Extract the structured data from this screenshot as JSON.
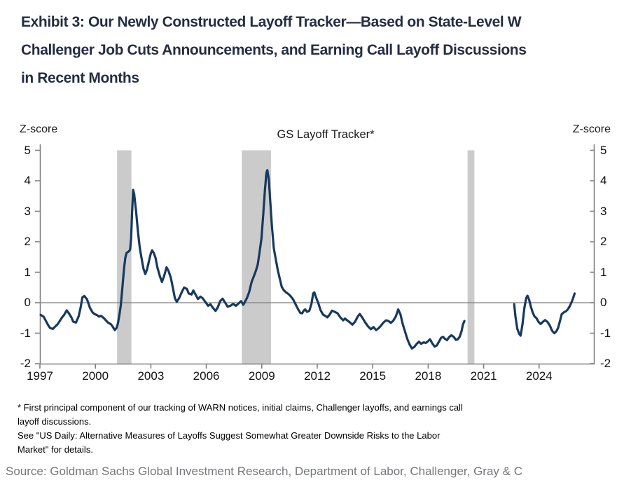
{
  "exhibit": {
    "title_lines": [
      "Exhibit 3: Our Newly Constructed Layoff Tracker—Based on State-Level W",
      "Challenger Job Cuts Announcements, and Earning Call Layoff Discussions",
      "in Recent Months"
    ]
  },
  "chart": {
    "title": "GS Layoff Tracker*",
    "y_axis_label_left": "Z-score",
    "y_axis_label_right": "Z-score"
  },
  "chart_data": {
    "type": "line",
    "title": "GS Layoff Tracker*",
    "xlabel": "",
    "ylabel": "Z-score",
    "ylim": [
      -2,
      5
    ],
    "xlim": [
      1997,
      2027
    ],
    "grid": "zero-line-only",
    "legend_position": "none",
    "y_ticks": [
      5,
      4,
      3,
      2,
      1,
      0,
      -1,
      -2
    ],
    "x_ticks": [
      1997,
      2000,
      2003,
      2006,
      2009,
      2012,
      2015,
      2018,
      2021,
      2024
    ],
    "colors": {
      "line": "#17395f",
      "recession_band": "#cbcbcb",
      "zero_line": "#7f7f7f",
      "axis": "#808080"
    },
    "recession_bands": [
      [
        2001.17,
        2001.95
      ],
      [
        2007.92,
        2009.5
      ],
      [
        2020.13,
        2020.5
      ]
    ],
    "series": [
      {
        "name": "GS Layoff Tracker",
        "segments": [
          [
            [
              1997.04,
              -0.4
            ],
            [
              1997.2,
              -0.46
            ],
            [
              1997.3,
              -0.57
            ],
            [
              1997.45,
              -0.74
            ],
            [
              1997.55,
              -0.83
            ],
            [
              1997.7,
              -0.86
            ],
            [
              1997.8,
              -0.8
            ],
            [
              1997.95,
              -0.71
            ],
            [
              1998.05,
              -0.62
            ],
            [
              1998.2,
              -0.48
            ],
            [
              1998.32,
              -0.39
            ],
            [
              1998.45,
              -0.25
            ],
            [
              1998.55,
              -0.33
            ],
            [
              1998.7,
              -0.48
            ],
            [
              1998.8,
              -0.62
            ],
            [
              1998.95,
              -0.65
            ],
            [
              1999.1,
              -0.44
            ],
            [
              1999.2,
              -0.16
            ],
            [
              1999.3,
              0.18
            ],
            [
              1999.4,
              0.22
            ],
            [
              1999.55,
              0.11
            ],
            [
              1999.7,
              -0.16
            ],
            [
              1999.85,
              -0.32
            ],
            [
              1999.95,
              -0.37
            ],
            [
              2000.1,
              -0.41
            ],
            [
              2000.2,
              -0.46
            ],
            [
              2000.3,
              -0.43
            ],
            [
              2000.45,
              -0.5
            ],
            [
              2000.6,
              -0.6
            ],
            [
              2000.7,
              -0.66
            ],
            [
              2000.85,
              -0.71
            ],
            [
              2000.95,
              -0.8
            ],
            [
              2001.05,
              -0.9
            ],
            [
              2001.15,
              -0.82
            ],
            [
              2001.22,
              -0.68
            ],
            [
              2001.3,
              -0.4
            ],
            [
              2001.37,
              -0.1
            ],
            [
              2001.44,
              0.35
            ],
            [
              2001.5,
              0.78
            ],
            [
              2001.56,
              1.18
            ],
            [
              2001.62,
              1.48
            ],
            [
              2001.68,
              1.63
            ],
            [
              2001.75,
              1.66
            ],
            [
              2001.82,
              1.69
            ],
            [
              2001.88,
              1.74
            ],
            [
              2001.93,
              2.1
            ],
            [
              2001.98,
              2.9
            ],
            [
              2002.04,
              3.7
            ],
            [
              2002.1,
              3.56
            ],
            [
              2002.2,
              3.0
            ],
            [
              2002.3,
              2.35
            ],
            [
              2002.4,
              1.8
            ],
            [
              2002.5,
              1.45
            ],
            [
              2002.6,
              1.12
            ],
            [
              2002.7,
              0.94
            ],
            [
              2002.8,
              1.1
            ],
            [
              2002.9,
              1.38
            ],
            [
              2003.0,
              1.62
            ],
            [
              2003.07,
              1.72
            ],
            [
              2003.16,
              1.63
            ],
            [
              2003.25,
              1.48
            ],
            [
              2003.35,
              1.17
            ],
            [
              2003.48,
              0.88
            ],
            [
              2003.6,
              0.68
            ],
            [
              2003.72,
              0.88
            ],
            [
              2003.85,
              1.16
            ],
            [
              2003.95,
              1.05
            ],
            [
              2004.08,
              0.82
            ],
            [
              2004.2,
              0.46
            ],
            [
              2004.3,
              0.15
            ],
            [
              2004.4,
              0.03
            ],
            [
              2004.53,
              0.15
            ],
            [
              2004.65,
              0.32
            ],
            [
              2004.8,
              0.5
            ],
            [
              2004.95,
              0.45
            ],
            [
              2005.05,
              0.3
            ],
            [
              2005.2,
              0.27
            ],
            [
              2005.3,
              0.4
            ],
            [
              2005.45,
              0.23
            ],
            [
              2005.55,
              0.12
            ],
            [
              2005.68,
              0.2
            ],
            [
              2005.8,
              0.15
            ],
            [
              2005.95,
              0.02
            ],
            [
              2006.1,
              -0.1
            ],
            [
              2006.22,
              -0.05
            ],
            [
              2006.35,
              -0.16
            ],
            [
              2006.5,
              -0.27
            ],
            [
              2006.62,
              -0.15
            ],
            [
              2006.75,
              0.05
            ],
            [
              2006.88,
              0.13
            ],
            [
              2007.0,
              0.02
            ],
            [
              2007.15,
              -0.13
            ],
            [
              2007.3,
              -0.1
            ],
            [
              2007.45,
              -0.04
            ],
            [
              2007.6,
              -0.1
            ],
            [
              2007.75,
              -0.02
            ],
            [
              2007.88,
              0.05
            ],
            [
              2008.0,
              -0.07
            ],
            [
              2008.1,
              0.04
            ],
            [
              2008.2,
              0.16
            ],
            [
              2008.32,
              0.35
            ],
            [
              2008.45,
              0.68
            ],
            [
              2008.58,
              0.88
            ],
            [
              2008.68,
              1.05
            ],
            [
              2008.78,
              1.25
            ],
            [
              2008.88,
              1.65
            ],
            [
              2008.98,
              2.1
            ],
            [
              2009.08,
              2.9
            ],
            [
              2009.17,
              3.7
            ],
            [
              2009.25,
              4.25
            ],
            [
              2009.3,
              4.35
            ],
            [
              2009.38,
              4.05
            ],
            [
              2009.45,
              3.4
            ],
            [
              2009.55,
              2.5
            ],
            [
              2009.65,
              1.78
            ],
            [
              2009.75,
              1.45
            ],
            [
              2009.87,
              1.05
            ],
            [
              2009.97,
              0.8
            ],
            [
              2010.08,
              0.52
            ],
            [
              2010.2,
              0.4
            ],
            [
              2010.33,
              0.33
            ],
            [
              2010.45,
              0.28
            ],
            [
              2010.58,
              0.2
            ],
            [
              2010.7,
              0.1
            ],
            [
              2010.82,
              -0.04
            ],
            [
              2010.95,
              -0.2
            ],
            [
              2011.08,
              -0.33
            ],
            [
              2011.18,
              -0.35
            ],
            [
              2011.28,
              -0.25
            ],
            [
              2011.35,
              -0.22
            ],
            [
              2011.45,
              -0.3
            ],
            [
              2011.57,
              -0.27
            ],
            [
              2011.68,
              -0.05
            ],
            [
              2011.78,
              0.3
            ],
            [
              2011.84,
              0.34
            ],
            [
              2011.93,
              0.18
            ],
            [
              2012.05,
              0.0
            ],
            [
              2012.18,
              -0.25
            ],
            [
              2012.32,
              -0.39
            ],
            [
              2012.45,
              -0.44
            ],
            [
              2012.55,
              -0.48
            ],
            [
              2012.68,
              -0.38
            ],
            [
              2012.8,
              -0.26
            ],
            [
              2012.95,
              -0.3
            ],
            [
              2013.1,
              -0.35
            ],
            [
              2013.25,
              -0.48
            ],
            [
              2013.4,
              -0.58
            ],
            [
              2013.5,
              -0.52
            ],
            [
              2013.62,
              -0.58
            ],
            [
              2013.75,
              -0.64
            ],
            [
              2013.9,
              -0.72
            ],
            [
              2014.05,
              -0.62
            ],
            [
              2014.18,
              -0.46
            ],
            [
              2014.3,
              -0.37
            ],
            [
              2014.45,
              -0.5
            ],
            [
              2014.6,
              -0.65
            ],
            [
              2014.75,
              -0.78
            ],
            [
              2014.9,
              -0.87
            ],
            [
              2015.05,
              -0.8
            ],
            [
              2015.18,
              -0.9
            ],
            [
              2015.32,
              -0.84
            ],
            [
              2015.45,
              -0.75
            ],
            [
              2015.58,
              -0.65
            ],
            [
              2015.72,
              -0.58
            ],
            [
              2015.85,
              -0.6
            ],
            [
              2015.98,
              -0.66
            ],
            [
              2016.1,
              -0.6
            ],
            [
              2016.25,
              -0.45
            ],
            [
              2016.38,
              -0.22
            ],
            [
              2016.5,
              -0.38
            ],
            [
              2016.62,
              -0.7
            ],
            [
              2016.75,
              -0.95
            ],
            [
              2016.88,
              -1.2
            ],
            [
              2017.0,
              -1.38
            ],
            [
              2017.12,
              -1.5
            ],
            [
              2017.25,
              -1.45
            ],
            [
              2017.38,
              -1.35
            ],
            [
              2017.5,
              -1.28
            ],
            [
              2017.62,
              -1.35
            ],
            [
              2017.75,
              -1.3
            ],
            [
              2017.88,
              -1.32
            ],
            [
              2018.0,
              -1.26
            ],
            [
              2018.1,
              -1.2
            ],
            [
              2018.22,
              -1.33
            ],
            [
              2018.35,
              -1.44
            ],
            [
              2018.47,
              -1.4
            ],
            [
              2018.58,
              -1.28
            ],
            [
              2018.7,
              -1.15
            ],
            [
              2018.8,
              -1.12
            ],
            [
              2018.9,
              -1.18
            ],
            [
              2019.02,
              -1.23
            ],
            [
              2019.13,
              -1.13
            ],
            [
              2019.25,
              -1.07
            ],
            [
              2019.38,
              -1.12
            ],
            [
              2019.5,
              -1.22
            ],
            [
              2019.6,
              -1.2
            ],
            [
              2019.7,
              -1.12
            ],
            [
              2019.8,
              -0.95
            ],
            [
              2019.88,
              -0.72
            ],
            [
              2019.96,
              -0.6
            ]
          ],
          [
            [
              2022.65,
              -0.05
            ],
            [
              2022.72,
              -0.45
            ],
            [
              2022.82,
              -0.85
            ],
            [
              2022.92,
              -1.02
            ],
            [
              2023.0,
              -1.08
            ],
            [
              2023.1,
              -0.72
            ],
            [
              2023.2,
              -0.18
            ],
            [
              2023.3,
              0.15
            ],
            [
              2023.37,
              0.23
            ],
            [
              2023.46,
              0.1
            ],
            [
              2023.55,
              -0.12
            ],
            [
              2023.65,
              -0.32
            ],
            [
              2023.75,
              -0.45
            ],
            [
              2023.85,
              -0.5
            ],
            [
              2023.97,
              -0.63
            ],
            [
              2024.08,
              -0.7
            ],
            [
              2024.2,
              -0.63
            ],
            [
              2024.32,
              -0.57
            ],
            [
              2024.45,
              -0.63
            ],
            [
              2024.58,
              -0.75
            ],
            [
              2024.7,
              -0.92
            ],
            [
              2024.82,
              -1.0
            ],
            [
              2024.93,
              -0.94
            ],
            [
              2025.03,
              -0.82
            ],
            [
              2025.13,
              -0.6
            ],
            [
              2025.22,
              -0.38
            ],
            [
              2025.33,
              -0.32
            ],
            [
              2025.45,
              -0.28
            ],
            [
              2025.55,
              -0.22
            ],
            [
              2025.67,
              -0.1
            ],
            [
              2025.8,
              0.08
            ],
            [
              2025.92,
              0.3
            ]
          ]
        ]
      }
    ],
    "annotations": [
      "Gray shaded vertical bands mark recessions (2001, 2007-09, 2020)",
      "Series has a gap from 2020 to mid-2022"
    ]
  },
  "footnotes": {
    "lines": [
      "* First principal component of our tracking of WARN notices, initial claims, Challenger layoffs, and earnings call",
      "layoff discussions.",
      "See \"US Daily: Alternative Measures of Layoffs Suggest Somewhat Greater Downside Risks to the Labor",
      "Market\" for details."
    ]
  },
  "source": "Source: Goldman Sachs Global Investment Research, Department of Labor, Challenger, Gray & C"
}
